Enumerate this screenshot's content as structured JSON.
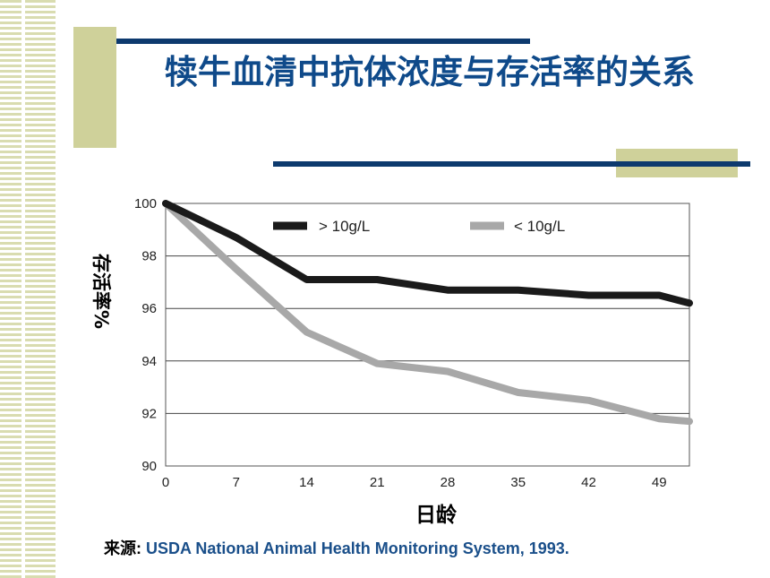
{
  "title": "犊牛血清中抗体浓度与存活率的关系",
  "source": {
    "label": "来源:",
    "text": "USDA National Animal Health Monitoring System, 1993."
  },
  "colors": {
    "accent_blue": "#0d3a6e",
    "title_blue": "#0f4a8a",
    "deco_olive": "#cfd19a",
    "series_high": "#1a1a1a",
    "series_low": "#a8a8a8"
  },
  "chart_data": {
    "type": "line",
    "title": "",
    "xlabel": "日龄",
    "ylabel": "存活率%",
    "xlim": [
      0,
      52
    ],
    "ylim": [
      90,
      100
    ],
    "x_ticks": [
      0,
      7,
      14,
      21,
      28,
      35,
      42,
      49
    ],
    "y_ticks": [
      90,
      92,
      94,
      96,
      98,
      100
    ],
    "grid": "horizontal",
    "legend_position": "top",
    "series": [
      {
        "name": "> 10g/L",
        "color": "#1a1a1a",
        "x": [
          0,
          7,
          14,
          21,
          28,
          35,
          42,
          49,
          52
        ],
        "y": [
          100,
          98.7,
          97.1,
          97.1,
          96.7,
          96.7,
          96.5,
          96.5,
          96.2
        ]
      },
      {
        "name": "< 10g/L",
        "color": "#a8a8a8",
        "x": [
          0,
          7,
          14,
          21,
          28,
          35,
          42,
          49,
          52
        ],
        "y": [
          100,
          97.5,
          95.1,
          93.9,
          93.6,
          92.8,
          92.5,
          91.8,
          91.7
        ]
      }
    ]
  }
}
